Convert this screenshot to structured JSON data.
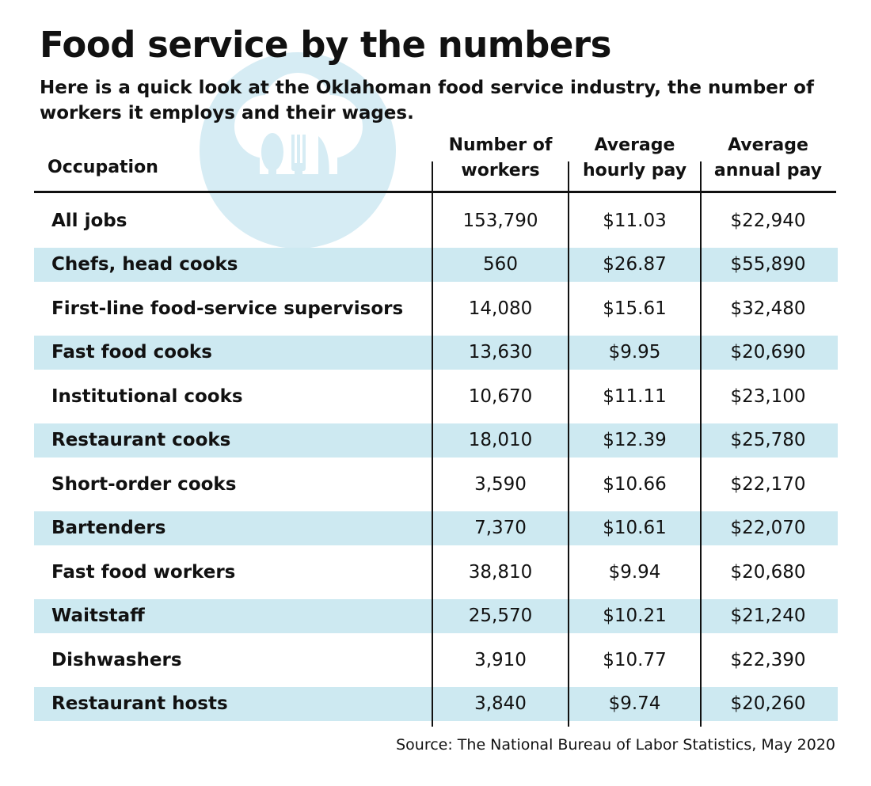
{
  "title": "Food service by the numbers",
  "subtitle": "Here is a quick look at the Oklahoman food service industry, the number of workers it employs and their wages.",
  "headers": {
    "occupation": "Occupation",
    "workers_1": "Number of",
    "workers_2": "workers",
    "hourly_1": "Average",
    "hourly_2": "hourly pay",
    "annual_1": "Average",
    "annual_2": "annual pay"
  },
  "source": "Source: The National Bureau of Labor Statistics, May 2020",
  "colors": {
    "stripe": "#cde9f1",
    "logo": "#d6ecf4",
    "text": "#111111"
  },
  "icons": [
    "fork-icon",
    "spoon-icon",
    "knife-icon"
  ],
  "chart_data": {
    "type": "table",
    "title": "Food service by the numbers",
    "subtitle": "Here is a quick look at the Oklahoman food service industry, the number of workers it employs and their wages.",
    "columns": [
      "Occupation",
      "Number of workers",
      "Average hourly pay",
      "Average annual pay"
    ],
    "rows": [
      [
        "All jobs",
        "153,790",
        "$11.03",
        "$22,940"
      ],
      [
        "Chefs, head cooks",
        "560",
        "$26.87",
        "$55,890"
      ],
      [
        "First-line food-service supervisors",
        "14,080",
        "$15.61",
        "$32,480"
      ],
      [
        "Fast food cooks",
        "13,630",
        "$9.95",
        "$20,690"
      ],
      [
        "Institutional cooks",
        "10,670",
        "$11.11",
        "$23,100"
      ],
      [
        "Restaurant cooks",
        "18,010",
        "$12.39",
        "$25,780"
      ],
      [
        "Short-order cooks",
        "3,590",
        "$10.66",
        "$22,170"
      ],
      [
        "Bartenders",
        "7,370",
        "$10.61",
        "$22,070"
      ],
      [
        "Fast food workers",
        "38,810",
        "$9.94",
        "$20,680"
      ],
      [
        "Waitstaff",
        "25,570",
        "$10.21",
        "$21,240"
      ],
      [
        "Dishwashers",
        "3,910",
        "$10.77",
        "$22,390"
      ],
      [
        "Restaurant hosts",
        "3,840",
        "$9.74",
        "$20,260"
      ]
    ],
    "source": "Source: The National Bureau of Labor Statistics, May 2020"
  }
}
